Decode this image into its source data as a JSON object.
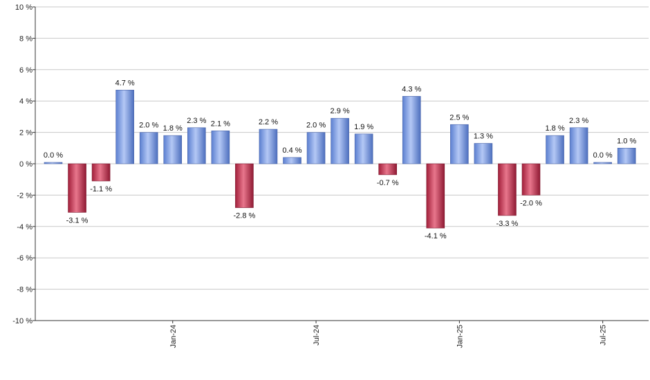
{
  "chart_data": {
    "type": "bar",
    "y_tick_labels": [
      "10 %",
      "8 %",
      "6 %",
      "4 %",
      "2 %",
      "0 %",
      "-2 %",
      "-4 %",
      "-6 %",
      "-8 %",
      "-10 %"
    ],
    "x_tick_labels": [
      "Jan-24",
      "Jul-24",
      "Jan-25",
      "Jul-25"
    ],
    "x_tick_bar_index": [
      5,
      11,
      17,
      23
    ],
    "ylim": [
      -10,
      10
    ],
    "grid": true,
    "legend": "none",
    "values": [
      0.0,
      -3.1,
      -1.1,
      4.7,
      2.0,
      1.8,
      2.3,
      2.1,
      -2.8,
      2.2,
      0.4,
      2.0,
      2.9,
      1.9,
      -0.7,
      4.3,
      -4.1,
      2.5,
      1.3,
      -3.3,
      -2.0,
      1.8,
      2.3,
      0.0,
      1.0
    ],
    "data_labels": [
      "0.0 %",
      "-3.1 %",
      "-1.1 %",
      "4.7 %",
      "2.0 %",
      "1.8 %",
      "2.3 %",
      "2.1 %",
      "-2.8 %",
      "2.2 %",
      "0.4 %",
      "2.0 %",
      "2.9 %",
      "1.9 %",
      "-0.7 %",
      "4.3 %",
      "-4.1 %",
      "2.5 %",
      "1.3 %",
      "-3.3 %",
      "-2.0 %",
      "1.8 %",
      "2.3 %",
      "0.0 %",
      "1.0 %"
    ],
    "colors": {
      "positive": "#7a9ee8",
      "negative": "#c8324f",
      "grid": "#c8c8c8",
      "axis": "#333333"
    }
  }
}
